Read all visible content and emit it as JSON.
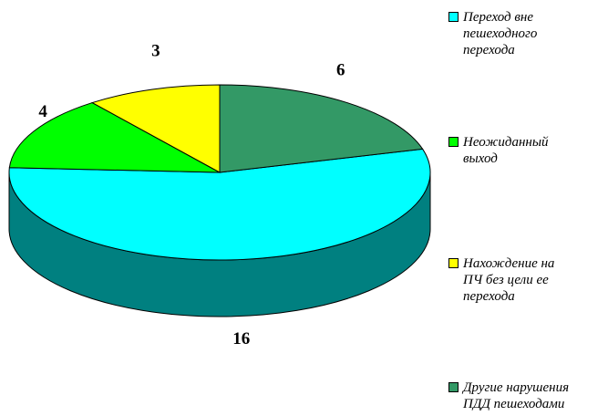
{
  "chart_data": {
    "type": "pie3d",
    "categories": [
      "Переход вне пешеходного перехода",
      "Неожиданный выход",
      "Нахождение на ПЧ без цели ее перехода",
      "Другие нарушения ПДД пешеходами"
    ],
    "values": [
      16,
      4,
      3,
      6
    ],
    "colors": [
      "#00ffff",
      "#00ff00",
      "#ffff00",
      "#339966"
    ],
    "legend": "right"
  }
}
